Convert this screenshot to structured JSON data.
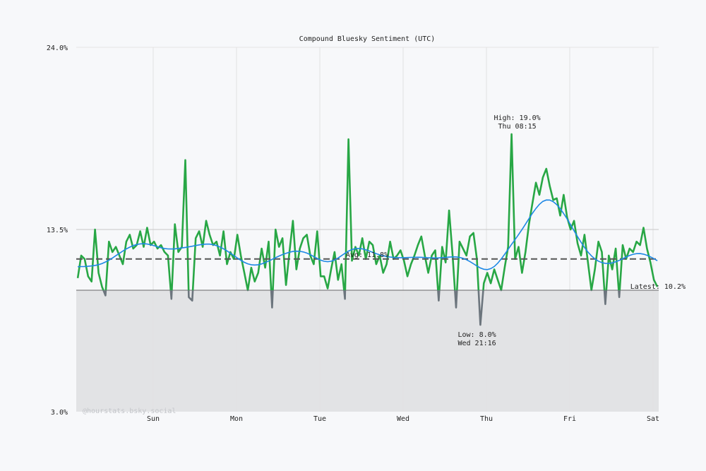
{
  "chart_data": {
    "type": "line",
    "title": "Compound Bluesky Sentiment (UTC)",
    "xlabel": "",
    "ylabel": "",
    "ylim": [
      3.0,
      24.0
    ],
    "y_ticks": [
      "24.0%",
      "13.5%",
      "3.0%"
    ],
    "y_tick_values": [
      24.0,
      13.5,
      3.0
    ],
    "x_ticks": [
      "Sun",
      "Mon",
      "Tue",
      "Wed",
      "Thu",
      "Fri",
      "Sat"
    ],
    "x_range": [
      "Sat 02:00",
      "Sat 01:45"
    ],
    "grid": true,
    "baseline": 10.0,
    "average": {
      "value": 11.8,
      "label": "Avg: 11.8%"
    },
    "high": {
      "value": 19.0,
      "label": "High: 19.0%",
      "time": "Thu 08:15"
    },
    "low": {
      "value": 8.0,
      "label": "Low: 8.0%",
      "time": "Wed 21:16"
    },
    "latest": {
      "value": 10.2,
      "label": "Latest: 10.2%"
    },
    "watermark": "@hourstats.bsky.social",
    "colors": {
      "line_above": "#28a745",
      "line_below": "#6c757d",
      "smoothed": "#1e88e5",
      "average": "#555555",
      "below_fill": "#e2e3e5",
      "background": "#f7f8fa"
    },
    "series": [
      {
        "day": "Sat",
        "start_hour": 2,
        "values": [
          10.7,
          12.0,
          11.8,
          10.8,
          10.5,
          13.5,
          11.0,
          10.2,
          9.7,
          12.8,
          12.2,
          12.5,
          12.0,
          11.5,
          12.8,
          13.2,
          12.4,
          12.6,
          13.4,
          12.5,
          13.6,
          12.6
        ]
      },
      {
        "day": "Sun",
        "start_hour": 0,
        "values": [
          12.8,
          12.4,
          12.6,
          12.2,
          12.0,
          9.5,
          13.8,
          12.2,
          12.5,
          17.5,
          9.6,
          9.4,
          13.0,
          13.4,
          12.5,
          14.0,
          13.2,
          12.6,
          12.8,
          12.0,
          13.4,
          11.5,
          12.2,
          11.8
        ]
      },
      {
        "day": "Mon",
        "start_hour": 0,
        "values": [
          13.2,
          12.0,
          11.0,
          10.0,
          11.3,
          10.5,
          11.0,
          12.4,
          11.3,
          12.8,
          9.0,
          13.5,
          12.5,
          13.0,
          10.3,
          12.2,
          14.0,
          11.2,
          12.4,
          13.0,
          13.2,
          12.0,
          11.5,
          13.4
        ]
      },
      {
        "day": "Tue",
        "start_hour": 0,
        "values": [
          10.8,
          10.8,
          10.1,
          11.2,
          12.2,
          10.6,
          11.5,
          9.5,
          18.7,
          11.7,
          12.5,
          12.0,
          13.0,
          11.8,
          12.8,
          12.6,
          11.5,
          12.0,
          11.0,
          11.5,
          12.8,
          11.8,
          12.0,
          12.3
        ]
      },
      {
        "day": "Wed",
        "start_hour": 0,
        "values": [
          11.7,
          10.8,
          11.5,
          12.0,
          12.6,
          13.1,
          12.0,
          11.0,
          12.0,
          12.3,
          9.4,
          12.5,
          11.6,
          14.6,
          12.0,
          9.0,
          12.8,
          12.4,
          12.0,
          13.1,
          13.3,
          11.8,
          8.0,
          10.4
        ]
      },
      {
        "day": "Thu",
        "start_hour": 0,
        "values": [
          11.0,
          10.4,
          11.2,
          10.6,
          10.0,
          11.3,
          12.5,
          19.0,
          11.8,
          12.5,
          11.0,
          12.2,
          13.8,
          15.0,
          16.2,
          15.5,
          16.5,
          17.0,
          16.0,
          15.2,
          15.3,
          14.3,
          15.5,
          14.2
        ]
      },
      {
        "day": "Fri",
        "start_hour": 0,
        "values": [
          13.5,
          14.0,
          12.7,
          12.0,
          13.2,
          11.6,
          10.0,
          11.2,
          12.8,
          12.2,
          9.2,
          12.0,
          11.2,
          12.4,
          9.6,
          12.6,
          11.8,
          12.4,
          12.2,
          12.8,
          12.6,
          13.6,
          12.4,
          11.6
        ]
      },
      {
        "day": "Sat",
        "start_hour": 0,
        "values": [
          10.6,
          10.2
        ]
      }
    ]
  }
}
